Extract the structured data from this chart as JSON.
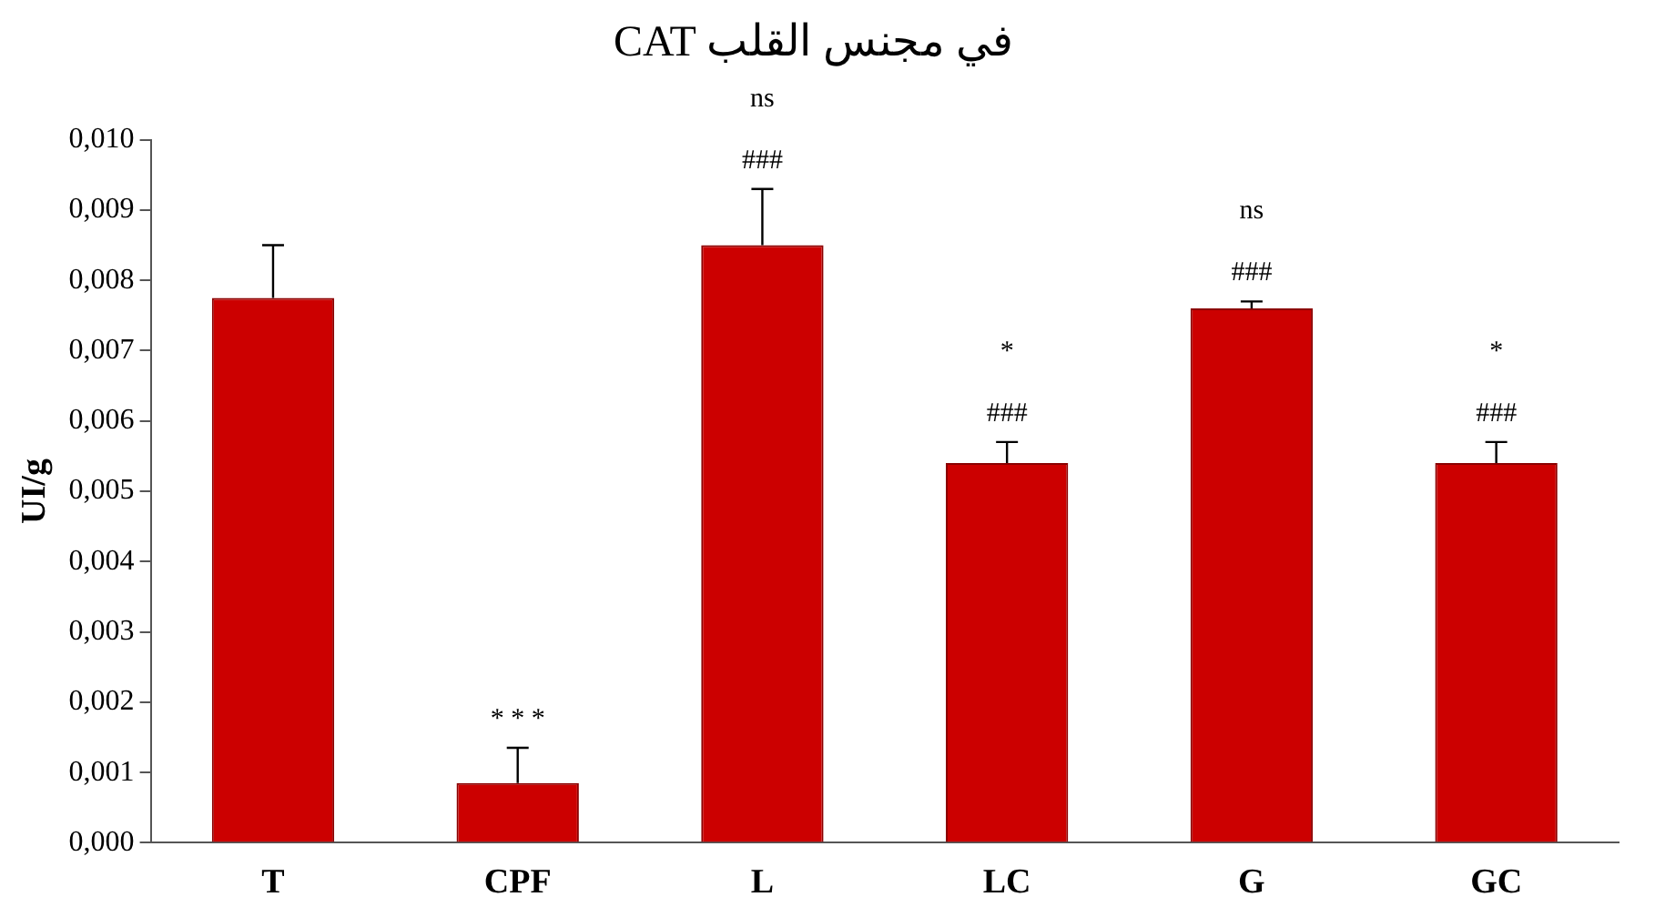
{
  "chart_data": {
    "type": "bar",
    "title": "CAT في مجنس القلب",
    "ylabel": "UI/g",
    "categories": [
      "T",
      "CPF",
      "L",
      "LC",
      "G",
      "GC"
    ],
    "values": [
      0.00775,
      0.00085,
      0.0085,
      0.0054,
      0.0076,
      0.0054
    ],
    "errors": [
      [
        0.00775,
        0.0085
      ],
      [
        0.00085,
        0.00135
      ],
      [
        0.0085,
        0.0093
      ],
      [
        0.0054,
        0.0057
      ],
      [
        0.0076,
        0.0077
      ],
      [
        0.0054,
        0.0057
      ]
    ],
    "color": "#cc0000",
    "ylim": [
      0,
      0.01
    ],
    "yticks": [
      {
        "value": 0,
        "label": "0,000"
      },
      {
        "value": 0.001,
        "label": "0,001"
      },
      {
        "value": 0.002,
        "label": "0,002"
      },
      {
        "value": 0.003,
        "label": "0,003"
      },
      {
        "value": 0.004,
        "label": "0,004"
      },
      {
        "value": 0.005,
        "label": "0,005"
      },
      {
        "value": 0.006,
        "label": "0,006"
      },
      {
        "value": 0.007,
        "label": "0,007"
      },
      {
        "value": 0.008,
        "label": "0,008"
      },
      {
        "value": 0.009,
        "label": "0,009"
      },
      {
        "value": 0.01,
        "label": "0,010"
      }
    ],
    "grid": false,
    "legend": false,
    "annotations": [
      {
        "text": "* * *",
        "x": "CPF",
        "y": 0.00135
      },
      {
        "text": "###",
        "x": "L",
        "y": 0.0093
      },
      {
        "text": "ns",
        "x": "L",
        "y": 0.0093
      },
      {
        "text": "###",
        "x": "LC",
        "y": 0.0057
      },
      {
        "text": "*",
        "x": "LC",
        "y": 0.0057
      },
      {
        "text": "###",
        "x": "G",
        "y": 0.0077
      },
      {
        "text": "ns",
        "x": "G",
        "y": 0.0077
      },
      {
        "text": "###",
        "x": "GC",
        "y": 0.0057
      },
      {
        "text": "*",
        "x": "GC",
        "y": 0.0057
      }
    ]
  }
}
